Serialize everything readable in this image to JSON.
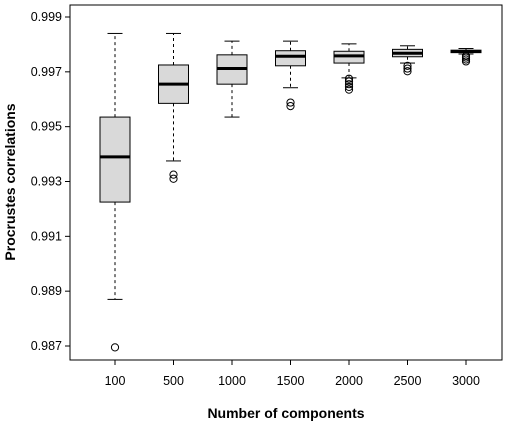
{
  "chart_data": {
    "type": "boxplot",
    "xlabel": "Number of components",
    "ylabel": "Procrustes correlations",
    "ylim": [
      0.9866,
      0.9994
    ],
    "yticks": [
      0.987,
      0.989,
      0.991,
      0.993,
      0.995,
      0.997,
      0.999
    ],
    "ytick_labels": [
      "0.987",
      "0.989",
      "0.991",
      "0.993",
      "0.995",
      "0.997",
      "0.999"
    ],
    "categories": [
      "100",
      "500",
      "1000",
      "1500",
      "2000",
      "2500",
      "3000"
    ],
    "box_fill": "#d9d9d9",
    "grid": false,
    "boxes": [
      {
        "category": "100",
        "whisker_low": 0.9887,
        "q1": 0.99225,
        "median": 0.9939,
        "q3": 0.99535,
        "whisker_high": 0.9984,
        "outliers": [
          0.98695
        ]
      },
      {
        "category": "500",
        "whisker_low": 0.99375,
        "q1": 0.99585,
        "median": 0.99655,
        "q3": 0.99725,
        "whisker_high": 0.9984,
        "outliers": [
          0.99325,
          0.9931
        ]
      },
      {
        "category": "1000",
        "whisker_low": 0.99535,
        "q1": 0.99655,
        "median": 0.99712,
        "q3": 0.99762,
        "whisker_high": 0.99812,
        "outliers": []
      },
      {
        "category": "1500",
        "whisker_low": 0.99642,
        "q1": 0.99722,
        "median": 0.99757,
        "q3": 0.99777,
        "whisker_high": 0.99812,
        "outliers": [
          0.99588,
          0.99575
        ]
      },
      {
        "category": "2000",
        "whisker_low": 0.99678,
        "q1": 0.99732,
        "median": 0.99758,
        "q3": 0.99775,
        "whisker_high": 0.99802,
        "outliers": [
          0.99675,
          0.99665,
          0.99655,
          0.99645,
          0.99635
        ]
      },
      {
        "category": "2500",
        "whisker_low": 0.99732,
        "q1": 0.99755,
        "median": 0.99768,
        "q3": 0.99782,
        "whisker_high": 0.99795,
        "outliers": [
          0.99722,
          0.99712,
          0.99702
        ]
      },
      {
        "category": "3000",
        "whisker_low": 0.99765,
        "q1": 0.9977,
        "median": 0.99774,
        "q3": 0.99779,
        "whisker_high": 0.99785,
        "outliers": [
          0.99758,
          0.99752,
          0.99745,
          0.99738
        ]
      }
    ]
  }
}
